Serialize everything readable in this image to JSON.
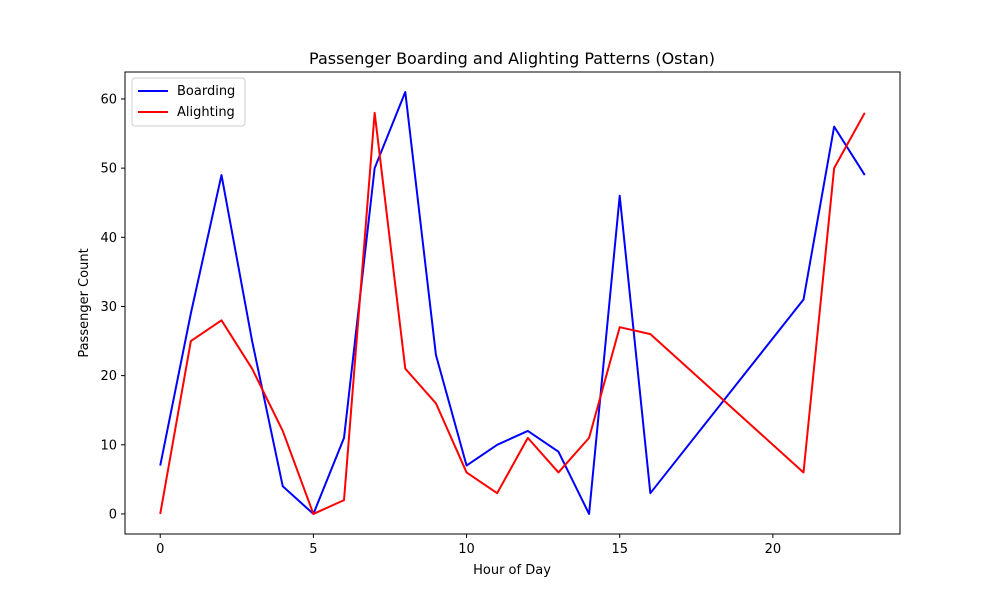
{
  "chart_data": {
    "type": "line",
    "title": "Passenger Boarding and Alighting Patterns (Ostan)",
    "xlabel": "Hour of Day",
    "ylabel": "Passenger Count",
    "xlim": [
      -1.15,
      24.15
    ],
    "ylim": [
      -2.9,
      63.9
    ],
    "xticks": [
      0,
      5,
      10,
      15,
      20
    ],
    "yticks": [
      0,
      10,
      20,
      30,
      40,
      50,
      60
    ],
    "grid": false,
    "legend_position": "top-left",
    "series": [
      {
        "name": "Boarding",
        "color": "#0000ff",
        "x": [
          0,
          1,
          2,
          3,
          4,
          5,
          6,
          7,
          8,
          9,
          10,
          11,
          12,
          13,
          14,
          15,
          16,
          21,
          22,
          23
        ],
        "y": [
          7,
          29,
          49,
          25,
          4,
          0,
          11,
          50,
          61,
          23,
          7,
          10,
          12,
          9,
          0,
          46,
          3,
          31,
          56,
          49
        ]
      },
      {
        "name": "Alighting",
        "color": "#ff0000",
        "x": [
          0,
          1,
          2,
          3,
          4,
          5,
          6,
          7,
          8,
          9,
          10,
          11,
          12,
          13,
          14,
          15,
          16,
          21,
          22,
          23
        ],
        "y": [
          0,
          25,
          28,
          21,
          12,
          0,
          2,
          58,
          21,
          16,
          6,
          3,
          11,
          6,
          11,
          27,
          26,
          6,
          50,
          58
        ]
      }
    ]
  }
}
